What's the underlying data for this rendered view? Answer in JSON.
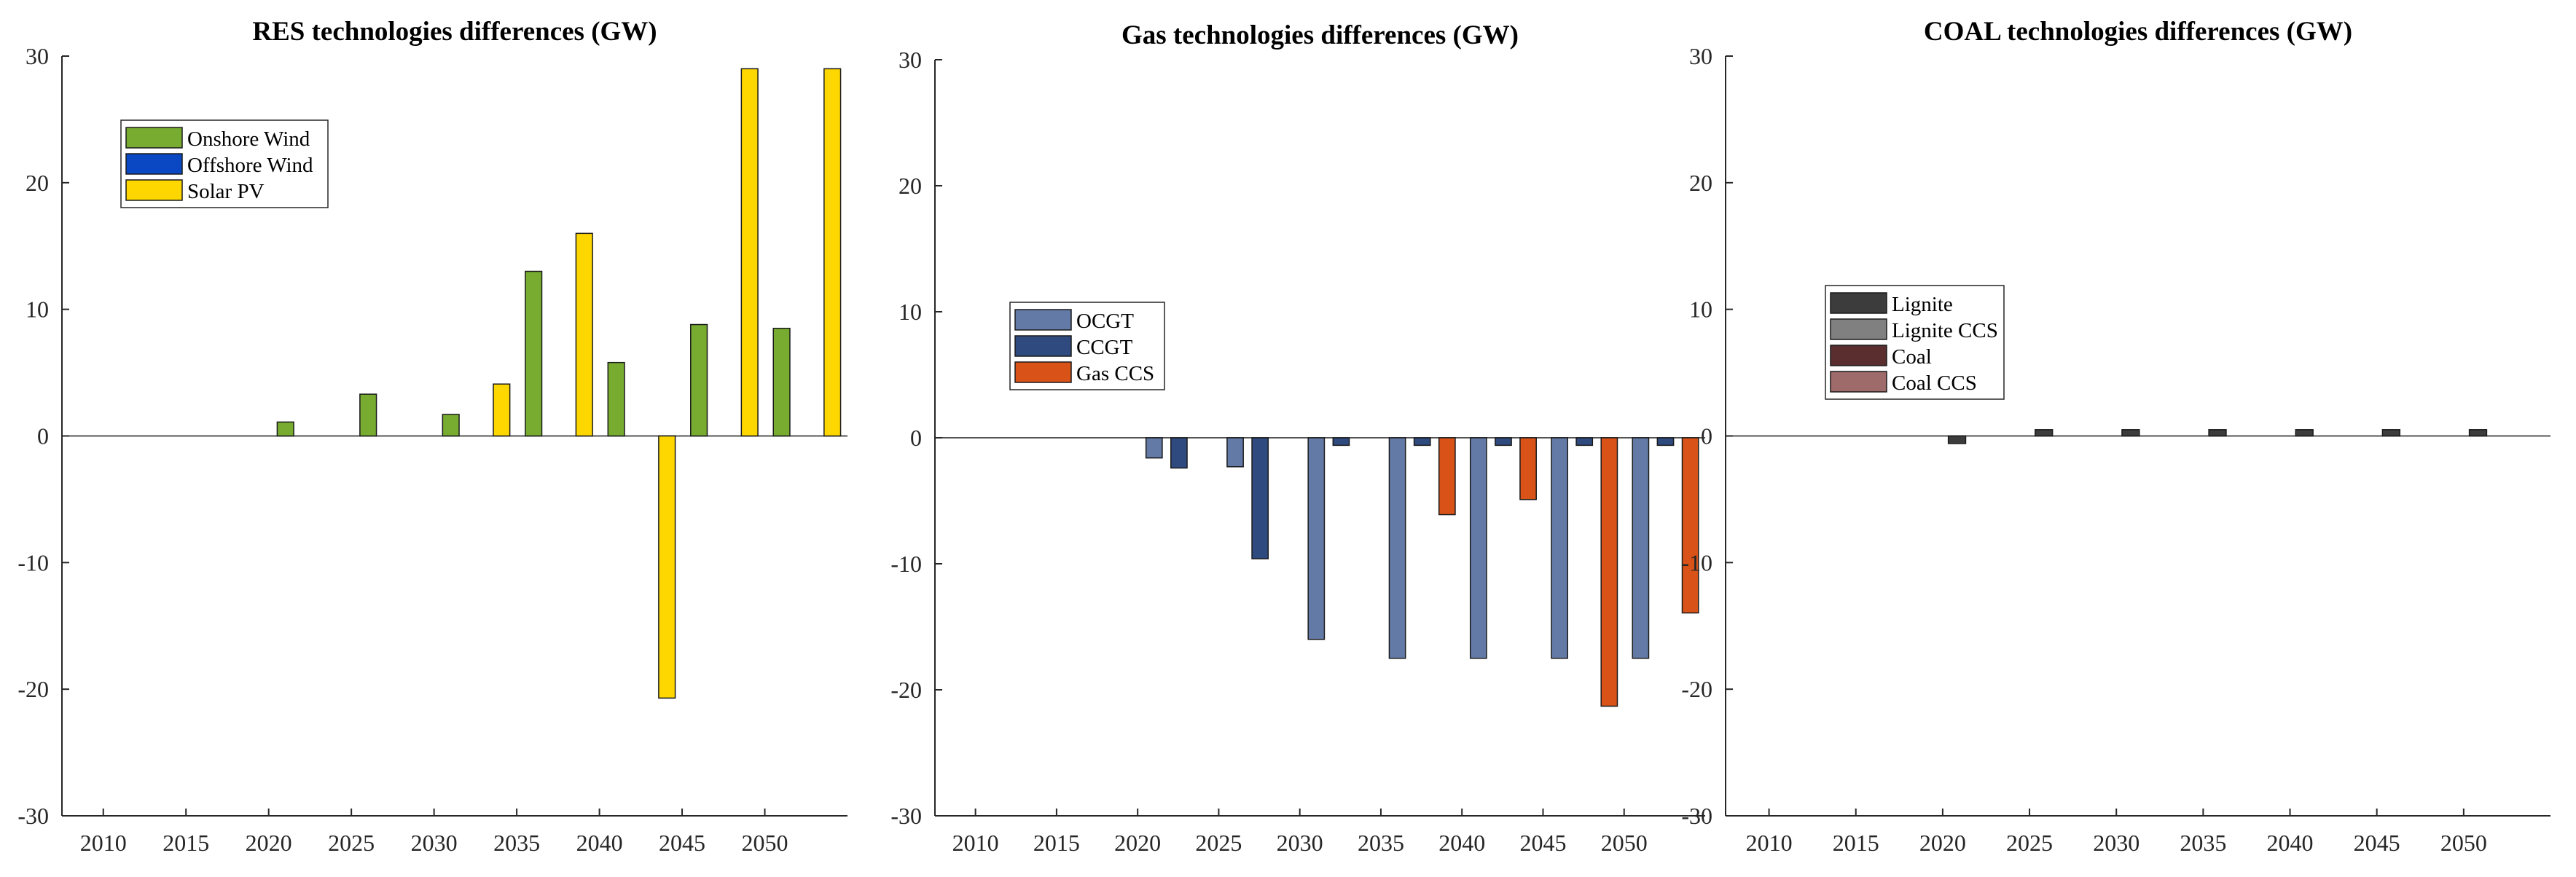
{
  "chart_data": [
    {
      "type": "bar",
      "title": "RES technologies differences (GW)",
      "xlabel": "",
      "ylabel": "",
      "categories": [
        "2010",
        "2015",
        "2020",
        "2025",
        "2030",
        "2035",
        "2040",
        "2045",
        "2050"
      ],
      "ylim": [
        -30,
        30
      ],
      "yticks": [
        -30,
        -20,
        -10,
        0,
        10,
        20,
        30
      ],
      "legend_position": "top-left",
      "series": [
        {
          "name": "Onshore Wind",
          "color": "#77AC30",
          "values": [
            0,
            0,
            1.1,
            3.3,
            1.7,
            13,
            5.8,
            8.8,
            8.5
          ]
        },
        {
          "name": "Offshore Wind",
          "color": "#0A47C2",
          "values": [
            0,
            0,
            0,
            0,
            0,
            0,
            0,
            0,
            0
          ]
        },
        {
          "name": "Solar PV",
          "color": "#FFD700",
          "values": [
            0,
            0,
            0,
            0,
            4.1,
            16,
            -20.7,
            29,
            29
          ]
        }
      ]
    },
    {
      "type": "bar",
      "title": "Gas technologies differences (GW)",
      "xlabel": "",
      "ylabel": "",
      "categories": [
        "2010",
        "2015",
        "2020",
        "2025",
        "2030",
        "2035",
        "2040",
        "2045",
        "2050"
      ],
      "ylim": [
        -30,
        30
      ],
      "yticks": [
        -30,
        -20,
        -10,
        0,
        10,
        20,
        30
      ],
      "legend_position": "center-left",
      "series": [
        {
          "name": "OCGT",
          "color": "#647AA6",
          "values": [
            0,
            0,
            -1.6,
            -2.3,
            -16,
            -17.5,
            -17.5,
            -17.5,
            -17.5
          ]
        },
        {
          "name": "CCGT",
          "color": "#2F4A7E",
          "values": [
            0,
            0,
            -2.4,
            -9.6,
            -0.6,
            -0.6,
            -0.6,
            -0.6,
            -0.6
          ]
        },
        {
          "name": "Gas CCS",
          "color": "#D95319",
          "values": [
            0,
            0,
            0,
            0,
            0,
            -6.1,
            -4.9,
            -21.3,
            -13.9
          ]
        }
      ]
    },
    {
      "type": "bar",
      "title": "COAL technologies differences (GW)",
      "xlabel": "",
      "ylabel": "",
      "categories": [
        "2010",
        "2015",
        "2020",
        "2025",
        "2030",
        "2035",
        "2040",
        "2045",
        "2050"
      ],
      "ylim": [
        -30,
        30
      ],
      "yticks": [
        -30,
        -20,
        -10,
        0,
        10,
        20,
        30
      ],
      "legend_position": "center-left",
      "series": [
        {
          "name": "Lignite",
          "color": "#3C3C3C",
          "values": [
            0,
            0,
            -0.6,
            0.5,
            0.5,
            0.5,
            0.5,
            0.5,
            0.5
          ]
        },
        {
          "name": "Lignite CCS",
          "color": "#808080",
          "values": [
            0,
            0,
            0,
            0,
            0,
            0,
            0,
            0,
            0
          ]
        },
        {
          "name": "Coal",
          "color": "#5A2E2E",
          "values": [
            0,
            0,
            0,
            0,
            0,
            0,
            0,
            0,
            0
          ]
        },
        {
          "name": "Coal CCS",
          "color": "#9E6A6A",
          "values": [
            0,
            0,
            0,
            0,
            0,
            0,
            0,
            0,
            0
          ]
        }
      ]
    }
  ]
}
